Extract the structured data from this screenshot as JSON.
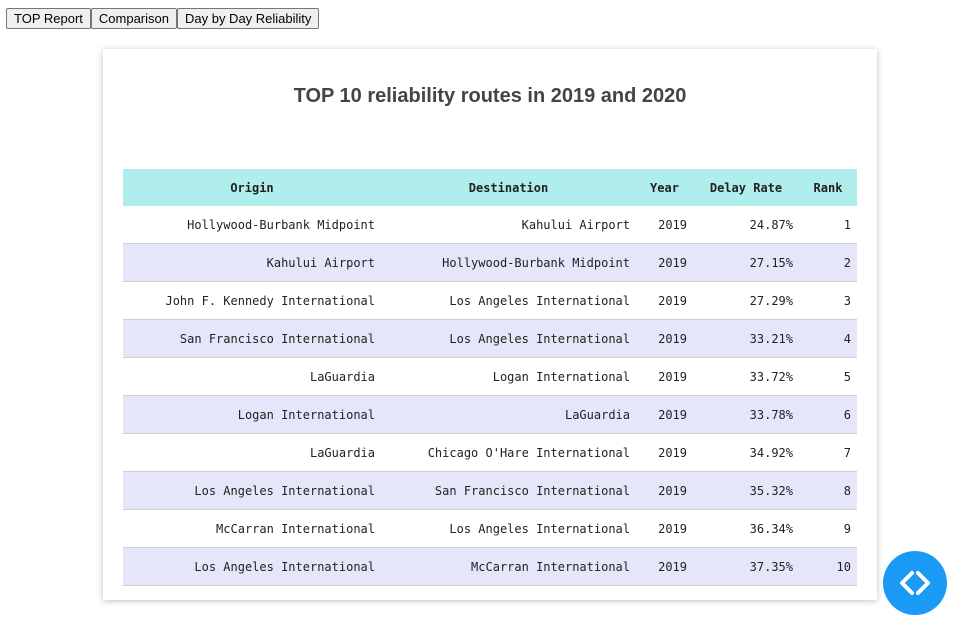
{
  "tabs": [
    {
      "label": "TOP Report"
    },
    {
      "label": "Comparison"
    },
    {
      "label": "Day by Day Reliability"
    }
  ],
  "report": {
    "title": "TOP 10 reliability routes in 2019 and 2020",
    "columns": [
      "Origin",
      "Destination",
      "Year",
      "Delay Rate",
      "Rank"
    ],
    "rows": [
      [
        "Hollywood-Burbank Midpoint",
        "Kahului Airport",
        "2019",
        "24.87%",
        "1"
      ],
      [
        "Kahului Airport",
        "Hollywood-Burbank Midpoint",
        "2019",
        "27.15%",
        "2"
      ],
      [
        "John F. Kennedy International",
        "Los Angeles International",
        "2019",
        "27.29%",
        "3"
      ],
      [
        "San Francisco International",
        "Los Angeles International",
        "2019",
        "33.21%",
        "4"
      ],
      [
        "LaGuardia",
        "Logan International",
        "2019",
        "33.72%",
        "5"
      ],
      [
        "Logan International",
        "LaGuardia",
        "2019",
        "33.78%",
        "6"
      ],
      [
        "LaGuardia",
        "Chicago O'Hare International",
        "2019",
        "34.92%",
        "7"
      ],
      [
        "Los Angeles International",
        "San Francisco International",
        "2019",
        "35.32%",
        "8"
      ],
      [
        "McCarran International",
        "Los Angeles International",
        "2019",
        "36.34%",
        "9"
      ],
      [
        "Los Angeles International",
        "McCarran International",
        "2019",
        "37.35%",
        "10"
      ]
    ]
  },
  "fab": {
    "icon": "code-brackets-icon",
    "color": "#1b9af5"
  },
  "colors": {
    "header_bg": "#b0eeee",
    "stripe_bg": "#e6e6fa"
  }
}
